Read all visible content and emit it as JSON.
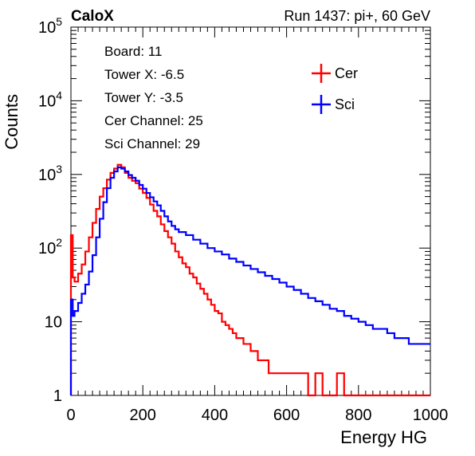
{
  "header": {
    "experiment": "CaloX",
    "run": "Run 1437: pi+, 60 GeV"
  },
  "info": {
    "lines": [
      "Board: 11",
      "Tower X: -6.5",
      "Tower Y: -3.5",
      "Cer Channel: 25",
      "Sci Channel: 29"
    ]
  },
  "chart_data": {
    "type": "line",
    "xlabel": "Energy HG",
    "ylabel": "Counts",
    "xlim": [
      0,
      1000
    ],
    "ylim": [
      1,
      100000
    ],
    "yscale": "log",
    "x_ticks": [
      "0",
      "200",
      "400",
      "600",
      "800",
      "1000"
    ],
    "y_ticks": [
      {
        "value": 1,
        "base": "1",
        "exp": ""
      },
      {
        "value": 10,
        "base": "10",
        "exp": ""
      },
      {
        "value": 100,
        "base": "10",
        "exp": "2"
      },
      {
        "value": 1000,
        "base": "10",
        "exp": "3"
      },
      {
        "value": 10000,
        "base": "10",
        "exp": "4"
      },
      {
        "value": 100000,
        "base": "10",
        "exp": "5"
      }
    ],
    "legend_position": "top-right",
    "series": [
      {
        "name": "Cer",
        "color": "#ff0000",
        "x": [
          0,
          5,
          10,
          20,
          30,
          40,
          50,
          60,
          70,
          80,
          90,
          100,
          110,
          120,
          130,
          140,
          150,
          160,
          170,
          180,
          190,
          200,
          210,
          220,
          230,
          240,
          250,
          260,
          270,
          280,
          290,
          300,
          310,
          320,
          330,
          340,
          350,
          360,
          370,
          380,
          390,
          400,
          410,
          420,
          430,
          440,
          450,
          460,
          470,
          480,
          490,
          500,
          510,
          520,
          530,
          540,
          550,
          560,
          570,
          580,
          590,
          600,
          620,
          640,
          660,
          680,
          700,
          720,
          740,
          760,
          780,
          800,
          820,
          840,
          860,
          880,
          900,
          920,
          940,
          960,
          980,
          1000
        ],
        "values": [
          150,
          40,
          35,
          45,
          60,
          90,
          140,
          220,
          340,
          500,
          650,
          850,
          1050,
          1200,
          1350,
          1250,
          1050,
          900,
          820,
          760,
          640,
          560,
          480,
          390,
          320,
          270,
          210,
          170,
          140,
          115,
          90,
          75,
          62,
          55,
          45,
          40,
          33,
          28,
          24,
          20,
          17,
          14,
          13,
          10,
          9,
          8,
          7,
          6,
          6,
          5,
          5,
          4,
          4,
          3,
          3,
          3,
          2,
          2,
          2,
          2,
          2,
          2,
          2,
          2,
          1,
          2,
          1,
          1,
          2,
          1,
          1,
          1,
          1,
          1,
          1,
          1,
          1,
          1,
          1,
          1,
          1,
          1
        ]
      },
      {
        "name": "Sci",
        "color": "#0000ff",
        "x": [
          0,
          5,
          10,
          20,
          30,
          40,
          50,
          60,
          70,
          80,
          90,
          100,
          110,
          120,
          130,
          140,
          150,
          160,
          170,
          180,
          190,
          200,
          210,
          220,
          230,
          240,
          250,
          260,
          270,
          280,
          290,
          300,
          320,
          340,
          360,
          380,
          400,
          420,
          440,
          460,
          480,
          500,
          520,
          540,
          560,
          580,
          600,
          620,
          640,
          660,
          680,
          700,
          720,
          740,
          760,
          780,
          800,
          820,
          840,
          860,
          880,
          900,
          920,
          940,
          960,
          980,
          1000
        ],
        "values": [
          20,
          12,
          14,
          18,
          24,
          32,
          48,
          80,
          140,
          250,
          420,
          650,
          900,
          1100,
          1250,
          1200,
          1100,
          980,
          900,
          820,
          720,
          640,
          560,
          490,
          430,
          380,
          320,
          270,
          230,
          200,
          180,
          165,
          150,
          130,
          115,
          100,
          90,
          82,
          72,
          65,
          58,
          52,
          47,
          42,
          38,
          34,
          30,
          27,
          24,
          21,
          19,
          17,
          15,
          14,
          12,
          11,
          10,
          9,
          8,
          8,
          7,
          6,
          6,
          5,
          5,
          5,
          5
        ]
      }
    ]
  }
}
